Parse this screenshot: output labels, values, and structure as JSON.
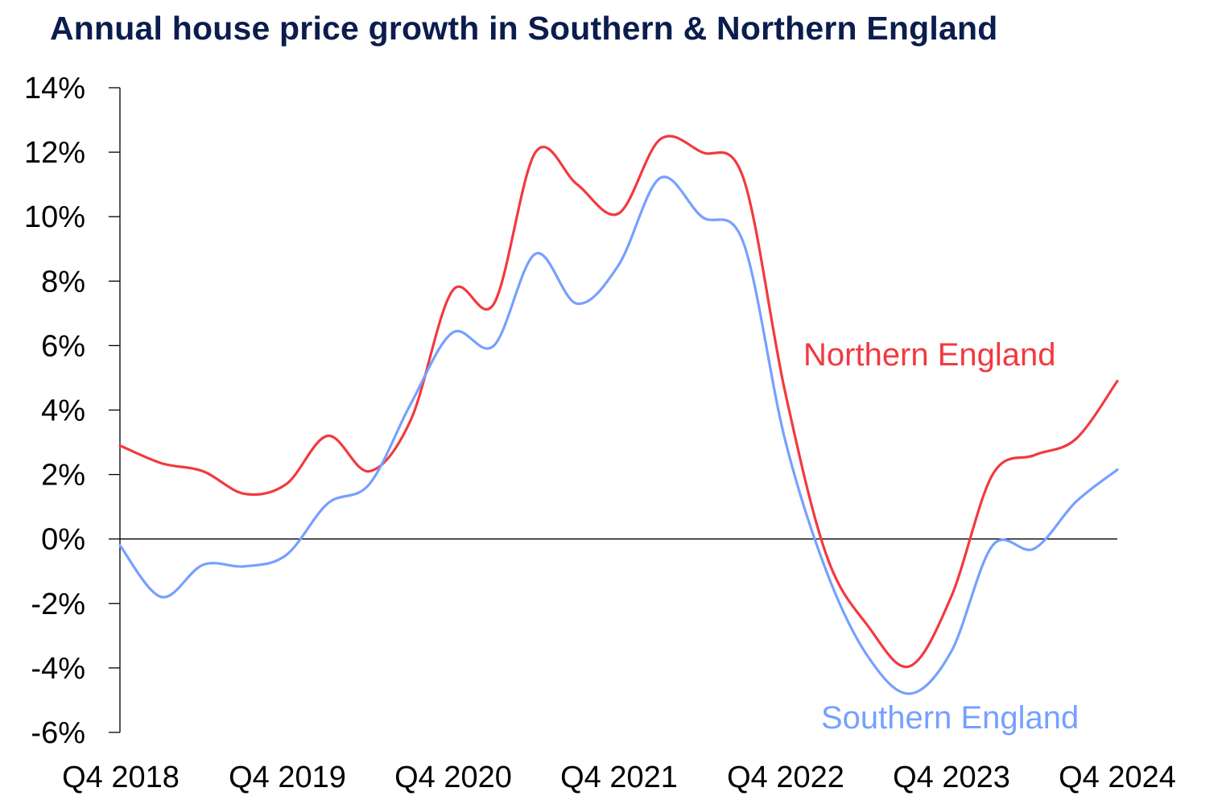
{
  "chart_data": {
    "type": "line",
    "title": "Annual house price growth in Southern & Northern England",
    "xlabel": "",
    "ylabel": "",
    "x_tick_labels": [
      "Q4 2018",
      "Q4 2019",
      "Q4 2020",
      "Q4 2021",
      "Q4 2022",
      "Q4 2023",
      "Q4 2024"
    ],
    "y_tick_labels": [
      "14%",
      "12%",
      "10%",
      "8%",
      "6%",
      "4%",
      "2%",
      "0%",
      "-2%",
      "-4%",
      "-6%"
    ],
    "y_ticks": [
      14,
      12,
      10,
      8,
      6,
      4,
      2,
      0,
      -2,
      -4,
      -6
    ],
    "ylim": [
      -6,
      14
    ],
    "x_quarters": 24,
    "grid": false,
    "zero_line": true,
    "series": [
      {
        "name": "Northern England",
        "color": "#f2393f",
        "values": [
          2.9,
          2.35,
          2.1,
          1.4,
          1.7,
          3.2,
          2.1,
          3.7,
          7.7,
          7.3,
          12.0,
          11.0,
          10.1,
          12.4,
          12.0,
          11.2,
          4.6,
          -0.5,
          -2.7,
          -3.95,
          -1.8,
          2.0,
          2.6,
          3.1,
          4.9
        ]
      },
      {
        "name": "Southern England",
        "color": "#76a0ff",
        "values": [
          -0.2,
          -1.8,
          -0.8,
          -0.85,
          -0.5,
          1.1,
          1.7,
          4.2,
          6.4,
          6.0,
          8.85,
          7.3,
          8.5,
          11.2,
          10.0,
          9.2,
          3.1,
          -1.0,
          -3.65,
          -4.8,
          -3.5,
          -0.2,
          -0.3,
          1.15,
          2.15
        ]
      }
    ]
  }
}
